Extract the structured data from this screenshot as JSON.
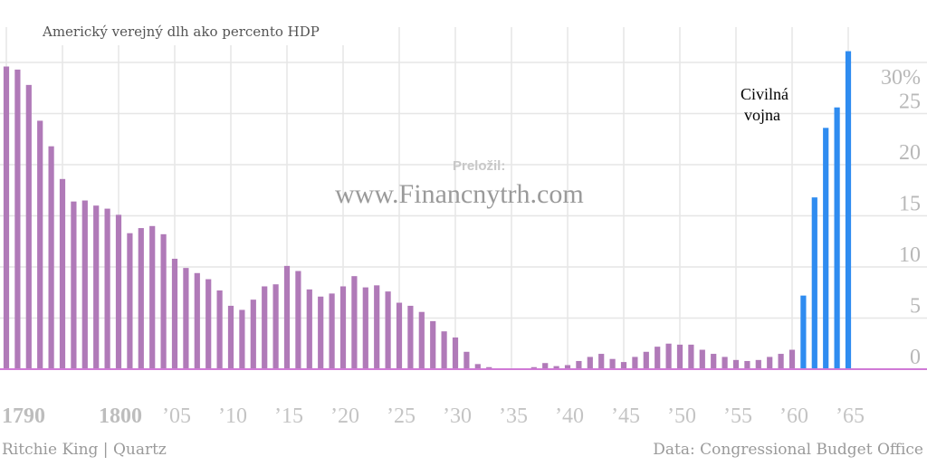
{
  "chart_data": {
    "type": "bar",
    "title": "Americký verejný dlh ako percento HDP",
    "x": [
      1790,
      1791,
      1792,
      1793,
      1794,
      1795,
      1796,
      1797,
      1798,
      1799,
      1800,
      1801,
      1802,
      1803,
      1804,
      1805,
      1806,
      1807,
      1808,
      1809,
      1810,
      1811,
      1812,
      1813,
      1814,
      1815,
      1816,
      1817,
      1818,
      1819,
      1820,
      1821,
      1822,
      1823,
      1824,
      1825,
      1826,
      1827,
      1828,
      1829,
      1830,
      1831,
      1832,
      1833,
      1834,
      1835,
      1836,
      1837,
      1838,
      1839,
      1840,
      1841,
      1842,
      1843,
      1844,
      1845,
      1846,
      1847,
      1848,
      1849,
      1850,
      1851,
      1852,
      1853,
      1854,
      1855,
      1856,
      1857,
      1858,
      1859,
      1860,
      1861,
      1862,
      1863,
      1864,
      1865
    ],
    "values": [
      29.6,
      29.3,
      27.8,
      24.3,
      21.8,
      18.6,
      16.4,
      16.5,
      16.0,
      15.7,
      15.1,
      13.3,
      13.8,
      14.0,
      13.2,
      10.8,
      9.9,
      9.4,
      8.8,
      7.7,
      6.2,
      5.8,
      6.8,
      8.1,
      8.3,
      10.1,
      9.6,
      7.8,
      7.1,
      7.4,
      8.1,
      9.1,
      8.0,
      8.2,
      7.6,
      6.5,
      6.2,
      5.6,
      4.7,
      3.7,
      3.1,
      1.7,
      0.5,
      0.2,
      0.0,
      0.0,
      0.0,
      0.2,
      0.6,
      0.3,
      0.4,
      0.8,
      1.2,
      1.5,
      1.0,
      0.7,
      1.2,
      1.7,
      2.2,
      2.5,
      2.4,
      2.4,
      1.9,
      1.5,
      1.2,
      0.9,
      0.8,
      0.9,
      1.2,
      1.5,
      1.9,
      7.2,
      16.8,
      23.6,
      25.6,
      31.1
    ],
    "war_start_year": 1861,
    "colors": {
      "peace": "#b07ab8",
      "war": "#2f8cf0",
      "baseline": "#d07ad6",
      "grid": "#e6e6e6"
    },
    "ylim": [
      0,
      31
    ],
    "yticks": [
      0,
      5,
      10,
      15,
      20,
      25
    ],
    "ytick_labels": [
      "0",
      "5",
      "10",
      "15",
      "20",
      "25"
    ],
    "ytop_label": "30%",
    "ytop_value": 30,
    "xticks": [
      1790,
      1800,
      1805,
      1810,
      1815,
      1820,
      1825,
      1830,
      1835,
      1840,
      1845,
      1850,
      1855,
      1860,
      1865
    ],
    "xtick_labels": [
      "1790",
      "1800",
      "’05",
      "’10",
      "’15",
      "’20",
      "’25",
      "’30",
      "’35",
      "’40",
      "’45",
      "’50",
      "’55",
      "’60",
      "’65"
    ],
    "major_xticks": [
      1790,
      1800
    ],
    "xgrid_years": [
      1790,
      1795,
      1800,
      1805,
      1810,
      1815,
      1820,
      1825,
      1830,
      1835,
      1840,
      1845,
      1850,
      1855,
      1860,
      1865
    ],
    "annotation": {
      "line1": "Civilná",
      "line2": "vojna"
    },
    "watermark": {
      "small": "Preložil:",
      "big": "www.Financnytrh.com"
    },
    "credit_left": "Ritchie King | Quartz",
    "credit_right": "Data: Congressional Budget Office"
  }
}
